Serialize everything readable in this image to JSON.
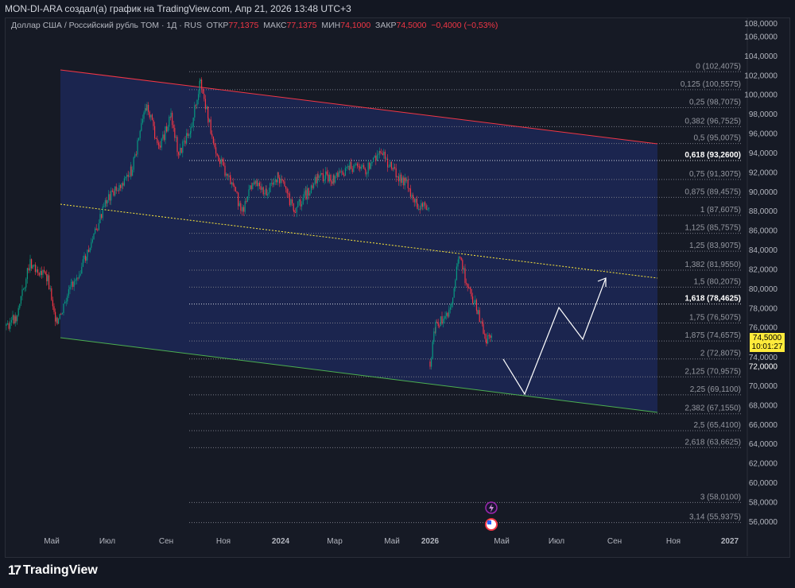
{
  "header": {
    "title": "MON-DI-ARA создал(а) график на TradingView.com, Апр 21, 2026 13:48 UTC+3"
  },
  "legend": {
    "symbol": "Доллар США / Российский рубль TOM · 1Д · RUS",
    "open_label": "ОТКР",
    "open": "77,1375",
    "high_label": "МАКС",
    "high": "77,1375",
    "low_label": "МИН",
    "low": "74,1000",
    "close_label": "ЗАКР",
    "close": "74,5000",
    "change": "−0,4000 (−0,53%)"
  },
  "price_axis": [
    "108,0000",
    "106,0000",
    "104,0000",
    "102,0000",
    "100,0000",
    "98,0000",
    "96,0000",
    "94,0000",
    "92,0000",
    "90,0000",
    "88,0000",
    "86,0000",
    "84,0000",
    "82,0000",
    "80,0000",
    "78,0000",
    "76,0000",
    "74,0000",
    "72,0000",
    "70,0000",
    "68,0000",
    "66,0000",
    "64,0000",
    "62,0000",
    "60,0000",
    "58,0000",
    "56,0000"
  ],
  "price_values": [
    108,
    106,
    104,
    102,
    100,
    98,
    96,
    94,
    92,
    90,
    88,
    86,
    84,
    82,
    80,
    78,
    76,
    74,
    72,
    70,
    68,
    66,
    64,
    62,
    60,
    58,
    56
  ],
  "current_price": {
    "price": "74,5000",
    "countdown": "10:01:27",
    "value": 74.5
  },
  "time_axis": [
    "Май",
    "Июл",
    "Сен",
    "Ноя",
    "2024",
    "Мар",
    "Май",
    "2026",
    "Май",
    "Июл",
    "Сен",
    "Ноя",
    "2027"
  ],
  "fib_levels": [
    {
      "label": "0 (102,4075)",
      "price": 102.4075
    },
    {
      "label": "0,125 (100,5575)",
      "price": 100.5575
    },
    {
      "label": "0,25 (98,7075)",
      "price": 98.7075
    },
    {
      "label": "0,382 (96,7525)",
      "price": 96.7525
    },
    {
      "label": "0,5 (95,0075)",
      "price": 95.0075
    },
    {
      "label": "0,618 (93,2600)",
      "price": 93.26,
      "bold": true
    },
    {
      "label": "0,75 (91,3075)",
      "price": 91.3075
    },
    {
      "label": "0,875 (89,4575)",
      "price": 89.4575
    },
    {
      "label": "1 (87,6075)",
      "price": 87.6075
    },
    {
      "label": "1,125 (85,7575)",
      "price": 85.7575
    },
    {
      "label": "1,25 (83,9075)",
      "price": 83.9075
    },
    {
      "label": "1,382 (81,9550)",
      "price": 81.955
    },
    {
      "label": "1,5 (80,2075)",
      "price": 80.2075
    },
    {
      "label": "1,618 (78,4625)",
      "price": 78.4625,
      "bold": true
    },
    {
      "label": "1,75 (76,5075)",
      "price": 76.5075
    },
    {
      "label": "1,875 (74,6575)",
      "price": 74.6575
    },
    {
      "label": "2 (72,8075)",
      "price": 72.8075
    },
    {
      "label": "2,125 (70,9575)",
      "price": 70.9575
    },
    {
      "label": "2,25 (69,1100)",
      "price": 69.11
    },
    {
      "label": "2,382 (67,1550)",
      "price": 67.155
    },
    {
      "label": "2,5 (65,4100)",
      "price": 65.41
    },
    {
      "label": "2,618 (63,6625)",
      "price": 63.6625
    },
    {
      "label": "3 (58,0100)",
      "price": 58.01
    },
    {
      "label": "3,14 (55,9375)",
      "price": 55.9375
    }
  ],
  "colors": {
    "up": "#089981",
    "down": "#f23645",
    "channel_top": "#f23645",
    "channel_bottom": "#4caf50",
    "mid": "#ffeb3b",
    "fill": "#1e2a5e"
  },
  "branding": {
    "logo": "TradingView"
  }
}
